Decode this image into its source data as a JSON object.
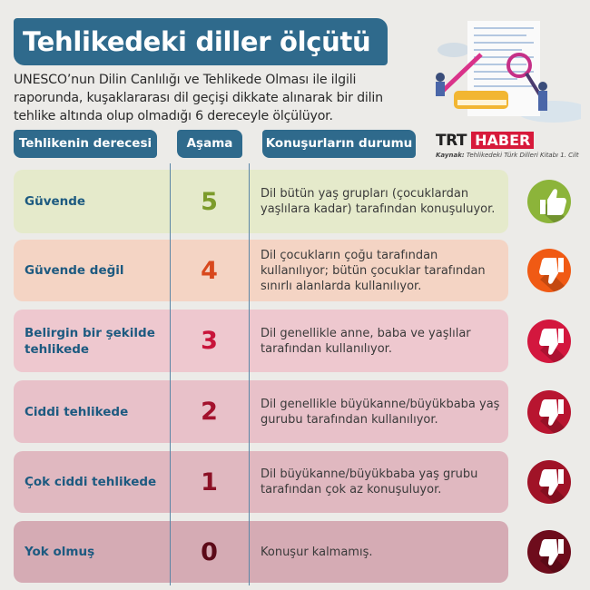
{
  "title": "Tehlikedeki diller ölçütü",
  "intro": "UNESCO’nun Dilin Canlılığı ve Tehlikede Olması ile ilgili raporunda, kuşaklararası dil geçişi dikkate alınarak bir dilin tehlike altında olup olmadığı 6 dereceyle ölçülüyor.",
  "headers": [
    "Tehlikenin derecesi",
    "Aşama",
    "Konuşurların durumu"
  ],
  "logo": {
    "trt": "TRT",
    "haber": "HABER"
  },
  "source": {
    "label": "Kaynak:",
    "text": "Tehlikedeki Türk Dilleri Kitabı 1. Cilt"
  },
  "rows": [
    {
      "degree": "Güvende",
      "stage": "5",
      "status": "Dil bütün yaş grupları (çocuklardan yaşlılara kadar) tarafından konuşuluyor.",
      "icon": "thumbs-up-icon",
      "bg": "#e5eacb",
      "num_color": "#7c9b2b",
      "icon_color": "#8cb43a"
    },
    {
      "degree": "Güvende değil",
      "stage": "4",
      "status": "Dil çocukların çoğu tarafından kullanılıyor; bütün çocuklar tarafından sınırlı alanlarda kullanılıyor.",
      "icon": "thumbs-down-icon",
      "bg": "#f4d4c4",
      "num_color": "#d8481d",
      "icon_color": "#f05a14"
    },
    {
      "degree": "Belirgin bir şekilde tehlikede",
      "stage": "3",
      "status": "Dil genellikle anne, baba ve yaşlılar tarafından kullanılıyor.",
      "icon": "thumbs-down-icon",
      "bg": "#eec8cf",
      "num_color": "#c8143a",
      "icon_color": "#d3173e"
    },
    {
      "degree": "Ciddi tehlikede",
      "stage": "2",
      "status": "Dil genellikle büyükanne/büyükbaba yaş gurubu tarafından kullanılıyor.",
      "icon": "thumbs-down-icon",
      "bg": "#e8c1c9",
      "num_color": "#a3122d",
      "icon_color": "#b81530"
    },
    {
      "degree": "Çok ciddi tehlikede",
      "stage": "1",
      "status": "Dil büyükanne/büyükbaba yaş grubu tarafından çok az konuşuluyor.",
      "icon": "thumbs-down-icon",
      "bg": "#e0b8c0",
      "num_color": "#8b1025",
      "icon_color": "#a01327"
    },
    {
      "degree": "Yok olmuş",
      "stage": "0",
      "status": "Konuşur kalmamış.",
      "icon": "thumbs-down-icon",
      "bg": "#d5abb4",
      "num_color": "#5c0a18",
      "icon_color": "#6e0c1c"
    }
  ]
}
